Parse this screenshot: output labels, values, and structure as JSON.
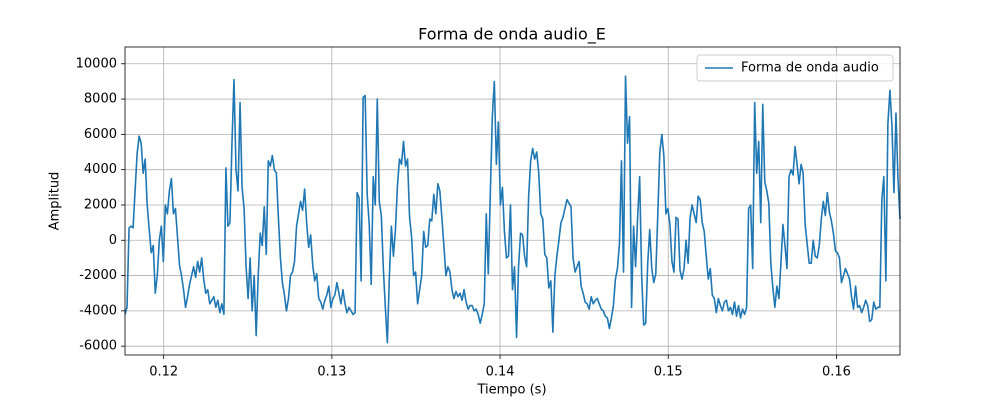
{
  "chart_data": {
    "type": "line",
    "title": "Forma de onda audio_E",
    "xlabel": "Tiempo (s)",
    "ylabel": "Amplitud",
    "x": [
      0.1177,
      0.11782,
      0.11794,
      0.11806,
      0.11818,
      0.1183,
      0.11842,
      0.11854,
      0.11866,
      0.11878,
      0.1189,
      0.11902,
      0.11914,
      0.11926,
      0.11938,
      0.1195,
      0.11962,
      0.11974,
      0.11986,
      0.11998,
      0.1201,
      0.12022,
      0.12034,
      0.12046,
      0.12058,
      0.1207,
      0.12082,
      0.12094,
      0.12106,
      0.12118,
      0.1213,
      0.12142,
      0.12154,
      0.12166,
      0.12178,
      0.1219,
      0.12202,
      0.12214,
      0.12226,
      0.12238,
      0.1225,
      0.12262,
      0.12274,
      0.12286,
      0.12298,
      0.1231,
      0.12322,
      0.12334,
      0.12346,
      0.12358,
      0.1237,
      0.12382,
      0.12394,
      0.12406,
      0.12418,
      0.1243,
      0.12442,
      0.12454,
      0.12466,
      0.12478,
      0.1249,
      0.12502,
      0.12514,
      0.12526,
      0.12538,
      0.1255,
      0.12562,
      0.12574,
      0.12586,
      0.12598,
      0.1261,
      0.12622,
      0.12634,
      0.12646,
      0.12658,
      0.1267,
      0.12682,
      0.12694,
      0.12706,
      0.12718,
      0.1273,
      0.12742,
      0.12754,
      0.12766,
      0.12778,
      0.1279,
      0.12802,
      0.12814,
      0.12826,
      0.12838,
      0.1285,
      0.12862,
      0.12874,
      0.12886,
      0.12898,
      0.1291,
      0.12922,
      0.12934,
      0.12946,
      0.12958,
      0.1297,
      0.12982,
      0.12994,
      0.13006,
      0.13018,
      0.1303,
      0.13042,
      0.13054,
      0.13066,
      0.13078,
      0.1309,
      0.13102,
      0.13114,
      0.13126,
      0.13138,
      0.1315,
      0.13162,
      0.13174,
      0.13186,
      0.13198,
      0.1321,
      0.13222,
      0.13234,
      0.13246,
      0.13258,
      0.1327,
      0.13282,
      0.13294,
      0.13306,
      0.13318,
      0.1333,
      0.13342,
      0.13354,
      0.13366,
      0.13378,
      0.1339,
      0.13402,
      0.13414,
      0.13426,
      0.13438,
      0.1345,
      0.13462,
      0.13474,
      0.13486,
      0.13498,
      0.1351,
      0.13522,
      0.13534,
      0.13546,
      0.13558,
      0.1357,
      0.13582,
      0.13594,
      0.13606,
      0.13618,
      0.1363,
      0.13642,
      0.13654,
      0.13666,
      0.13678,
      0.1369,
      0.13702,
      0.13714,
      0.13726,
      0.13738,
      0.1375,
      0.13762,
      0.13774,
      0.13786,
      0.13798,
      0.1381,
      0.13822,
      0.13834,
      0.13846,
      0.13858,
      0.1387,
      0.13882,
      0.13894,
      0.13906,
      0.13918,
      0.1393,
      0.13942,
      0.13954,
      0.13966,
      0.13978,
      0.1399,
      0.14002,
      0.14014,
      0.14026,
      0.14038,
      0.1405,
      0.14062,
      0.14074,
      0.14086,
      0.14098,
      0.1411,
      0.14122,
      0.14134,
      0.14146,
      0.14158,
      0.1417,
      0.14182,
      0.14194,
      0.14206,
      0.14218,
      0.1423,
      0.14242,
      0.14254,
      0.14266,
      0.14278,
      0.1429,
      0.14302,
      0.14314,
      0.14326,
      0.14338,
      0.1435,
      0.14362,
      0.14374,
      0.14386,
      0.14398,
      0.1441,
      0.14422,
      0.14434,
      0.14446,
      0.14458,
      0.1447,
      0.14482,
      0.14494,
      0.14506,
      0.14518,
      0.1453,
      0.14542,
      0.14554,
      0.14566,
      0.14578,
      0.1459,
      0.14602,
      0.14614,
      0.14626,
      0.14638,
      0.1465,
      0.14662,
      0.14674,
      0.14686,
      0.14698,
      0.1471,
      0.14722,
      0.14734,
      0.14746,
      0.14758,
      0.1477,
      0.14782,
      0.14794,
      0.14806,
      0.14818,
      0.1483,
      0.14842,
      0.14854,
      0.14866,
      0.14878,
      0.1489,
      0.14902,
      0.14914,
      0.14926,
      0.14938,
      0.1495,
      0.14962,
      0.14974,
      0.14986,
      0.14998,
      0.1501,
      0.15022,
      0.15034,
      0.15046,
      0.15058,
      0.1507,
      0.15082,
      0.15094,
      0.15106,
      0.15118,
      0.1513,
      0.15142,
      0.15154,
      0.15166,
      0.15178,
      0.1519,
      0.15202,
      0.15214,
      0.15226,
      0.15238,
      0.1525,
      0.15262,
      0.15274,
      0.15286,
      0.15298,
      0.1531,
      0.15322,
      0.15334,
      0.15346,
      0.15358,
      0.1537,
      0.15382,
      0.15394,
      0.15406,
      0.15418,
      0.1543,
      0.15442,
      0.15454,
      0.15466,
      0.15478,
      0.1549,
      0.15502,
      0.15514,
      0.15526,
      0.15538,
      0.1555,
      0.15562,
      0.15574,
      0.15586,
      0.15598,
      0.1561,
      0.15622,
      0.15634,
      0.15646,
      0.15658,
      0.1567,
      0.15682,
      0.15694,
      0.15706,
      0.15718,
      0.1573,
      0.15742,
      0.15754,
      0.15766,
      0.15778,
      0.1579,
      0.15802,
      0.15814,
      0.15826,
      0.15838,
      0.1585,
      0.15862,
      0.15874,
      0.15886,
      0.15898,
      0.1591,
      0.15922,
      0.15934,
      0.15946,
      0.15958,
      0.1597,
      0.15982,
      0.15994,
      0.16006,
      0.16018,
      0.1603,
      0.16042,
      0.16054,
      0.16066,
      0.16078,
      0.1609,
      0.16102,
      0.16114,
      0.16126,
      0.16138,
      0.1615,
      0.16162,
      0.16174,
      0.16186,
      0.16198,
      0.1621,
      0.16222,
      0.16234,
      0.16246,
      0.16258,
      0.1627,
      0.16282,
      0.16294,
      0.16306,
      0.16318,
      0.1633,
      0.16342,
      0.16354,
      0.16366,
      0.16378
    ],
    "series": [
      {
        "name": "Forma de onda audio",
        "color": "#1f77b4",
        "values": [
          -4200,
          -3800,
          700,
          800,
          700,
          2800,
          4900,
          5900,
          5500,
          3800,
          4600,
          2000,
          600,
          -700,
          -300,
          -3000,
          -2000,
          0,
          800,
          -1200,
          2000,
          1500,
          2800,
          3500,
          1500,
          1800,
          200,
          -1400,
          -2000,
          -2800,
          -3800,
          -3200,
          -2500,
          -2000,
          -1500,
          -2100,
          -1200,
          -1800,
          -1000,
          -2200,
          -3000,
          -2800,
          -3600,
          -3400,
          -3200,
          -3800,
          -3400,
          -4100,
          -3600,
          -4200,
          4100,
          800,
          1000,
          5500,
          9100,
          4000,
          2800,
          7800,
          3000,
          1800,
          -1500,
          -3300,
          -1000,
          -4000,
          -2000,
          -5400,
          -2000,
          400,
          -300,
          1900,
          -800,
          4500,
          4200,
          4800,
          4000,
          3800,
          1300,
          -1000,
          -2400,
          -3100,
          -4000,
          -3300,
          -2000,
          -1800,
          -1200,
          800,
          1500,
          2200,
          1700,
          2900,
          1000,
          -400,
          300,
          -1400,
          -2300,
          -1900,
          -3300,
          -3500,
          -3900,
          -3400,
          -3100,
          -2600,
          -3800,
          -3300,
          -3100,
          -2400,
          -3000,
          -3600,
          -2800,
          -3600,
          -4100,
          -3800,
          -4000,
          -4200,
          -4100,
          2700,
          2400,
          -2300,
          8100,
          8200,
          2600,
          900,
          -2500,
          3600,
          2000,
          8000,
          2200,
          1400,
          -1600,
          -3800,
          -5800,
          -2000,
          800,
          -900,
          600,
          3100,
          4600,
          4300,
          5600,
          4200,
          4600,
          1300,
          200,
          -2000,
          -1800,
          -3600,
          -2800,
          -2000,
          500,
          -400,
          -300,
          1200,
          1100,
          2600,
          1500,
          3200,
          2800,
          1300,
          -300,
          -2000,
          -1500,
          -1800,
          -2800,
          -3300,
          -2900,
          -3200,
          -3000,
          -3400,
          -2800,
          -3500,
          -3900,
          -3700,
          -3700,
          -4000,
          -3900,
          -4200,
          -4700,
          -4200,
          -3600,
          1500,
          -1900,
          2600,
          7000,
          9000,
          4300,
          6700,
          2000,
          3000,
          500,
          -1000,
          -900,
          2000,
          -2800,
          -1500,
          -5500,
          -1500,
          400,
          300,
          -900,
          -1500,
          2500,
          4500,
          5200,
          4600,
          5000,
          3800,
          1500,
          1200,
          -800,
          -1000,
          -2700,
          -2300,
          -5200,
          -2000,
          -900,
          0,
          1000,
          1300,
          1800,
          2300,
          2100,
          1900,
          -1000,
          -1800,
          -1500,
          -1200,
          -2600,
          -3000,
          -3500,
          -3600,
          -3900,
          -3200,
          -3600,
          -3400,
          -3300,
          -3600,
          -3900,
          -4000,
          -4300,
          -4400,
          -5000,
          -4400,
          -3700,
          -2200,
          -1600,
          -200,
          4500,
          -1800,
          9300,
          5500,
          7000,
          -3800,
          800,
          -1500,
          1300,
          3600,
          -2000,
          -4800,
          -4700,
          -1300,
          600,
          -1600,
          -2400,
          -1900,
          1500,
          5000,
          6000,
          4800,
          1500,
          1800,
          900,
          -1200,
          -1800,
          1300,
          1200,
          -1700,
          -2200,
          -1600,
          0,
          -1300,
          1300,
          2000,
          1500,
          1000,
          2500,
          2300,
          1000,
          500,
          -900,
          -2200,
          -1600,
          -3100,
          -3300,
          -4100,
          -3300,
          -3700,
          -4000,
          -3500,
          -3400,
          -4000,
          -3800,
          -4200,
          -3500,
          -4300,
          -3700,
          -4400,
          -3900,
          -4200,
          -3800,
          1800,
          2000,
          -1600,
          7800,
          3800,
          5600,
          1000,
          7700,
          3300,
          2800,
          2100,
          -1300,
          -2700,
          -3800,
          -2600,
          -3300,
          -1300,
          900,
          -300,
          -1600,
          3600,
          4000,
          3700,
          5300,
          4300,
          3200,
          4300,
          3800,
          900,
          -200,
          -1300,
          -1300,
          0,
          -900,
          -1000,
          -300,
          1200,
          2200,
          1400,
          2700,
          1600,
          1100,
          400,
          -600,
          -700,
          -1000,
          -2400,
          -2000,
          -1600,
          -1900,
          -2200,
          -3200,
          -3900,
          -2600,
          -3800,
          -3700,
          -4100,
          -3800,
          -3400,
          -3700,
          -4600,
          -4500,
          -3500,
          -3900,
          -3800,
          -3800,
          2300,
          3600,
          -2300,
          6600,
          8500,
          6500,
          2700,
          7200,
          3500,
          1200
        ]
      }
    ],
    "xlim": [
      0.1177,
      0.16378
    ],
    "ylim": [
      -6500,
      10950
    ],
    "xticks": [
      0.12,
      0.13,
      0.14,
      0.15,
      0.16
    ],
    "yticks": [
      -6000,
      -4000,
      -2000,
      0,
      2000,
      4000,
      6000,
      8000,
      10000
    ],
    "grid": true,
    "legend": "upper right"
  }
}
